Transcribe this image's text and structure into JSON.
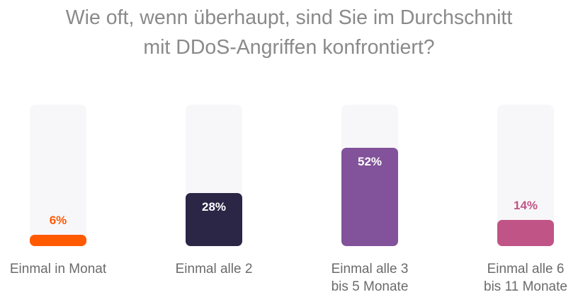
{
  "title": "Wie oft, wenn überhaupt, sind Sie im Durchschnitt\nmit DDoS-Angriffen konfrontiert?",
  "chart_data": {
    "type": "bar",
    "title": "Wie oft, wenn überhaupt, sind Sie im Durchschnitt mit DDoS-Angriffen konfrontiert?",
    "categories": [
      "Einmal in Monat",
      "Einmal alle 2",
      "Einmal alle 3\nbis 5 Monate",
      "Einmal alle 6\nbis 11 Monate"
    ],
    "values": [
      6,
      28,
      52,
      14
    ],
    "value_labels": [
      "6%",
      "28%",
      "52%",
      "14%"
    ],
    "colors": [
      "#ff5a00",
      "#2b2546",
      "#82529a",
      "#c15486"
    ],
    "label_colors": [
      "#ff5a00",
      "#ffffff",
      "#ffffff",
      "#c15486"
    ],
    "ylim": [
      0,
      100
    ],
    "grid": false,
    "legend": "none"
  }
}
